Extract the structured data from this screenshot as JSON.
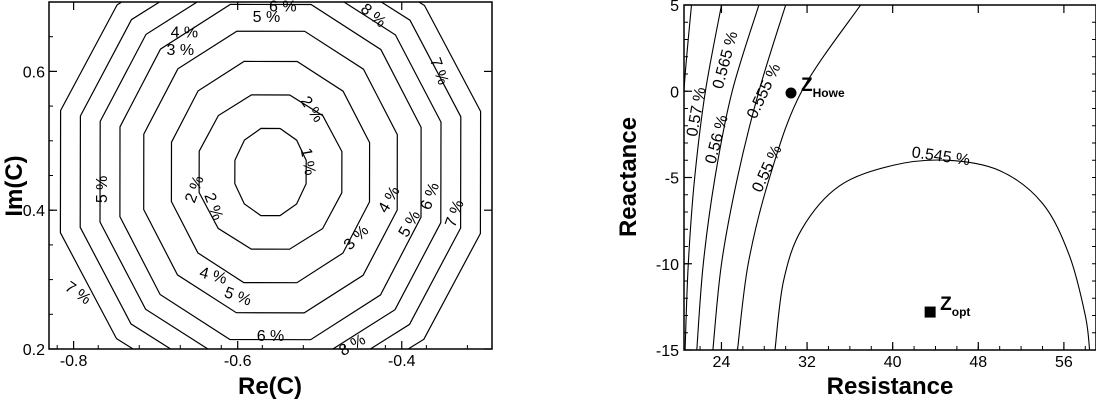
{
  "chart_data": [
    {
      "type": "contour",
      "xlabel": "Re(C)",
      "ylabel": "Im(C)",
      "xlim": [
        -0.83,
        -0.29
      ],
      "ylim": [
        0.2,
        0.7
      ],
      "x_ticks": [
        "-0.8",
        "-0.6",
        "-0.4"
      ],
      "y_ticks": [
        "0.2",
        "0.4",
        "0.6"
      ],
      "center": [
        -0.56,
        0.455
      ],
      "levels": [
        {
          "label": "1 %",
          "rx": 0.045,
          "ry": 0.065
        },
        {
          "label": "2 %",
          "rx": 0.09,
          "ry": 0.115
        },
        {
          "label": "3 %",
          "rx": 0.125,
          "ry": 0.165
        },
        {
          "label": "4 %",
          "rx": 0.16,
          "ry": 0.21
        },
        {
          "label": "5 %",
          "rx": 0.19,
          "ry": 0.25
        },
        {
          "label": "6 %",
          "rx": 0.215,
          "ry": 0.28
        },
        {
          "label": "7 %",
          "rx": 0.24,
          "ry": 0.31
        },
        {
          "label": "8 %",
          "rx": 0.265,
          "ry": 0.34
        }
      ],
      "contour_labels": [
        {
          "text": "1 %",
          "x": -0.515,
          "y": 0.47,
          "rot": 80
        },
        {
          "text": "2 %",
          "x": -0.51,
          "y": 0.545,
          "rot": 55
        },
        {
          "text": "2 %",
          "x": -0.652,
          "y": 0.43,
          "rot": -70
        },
        {
          "text": "2 %",
          "x": -0.63,
          "y": 0.405,
          "rot": 70
        },
        {
          "text": "3 %",
          "x": -0.67,
          "y": 0.63,
          "rot": 0
        },
        {
          "text": "3 %",
          "x": -0.455,
          "y": 0.36,
          "rot": -45
        },
        {
          "text": "4 %",
          "x": -0.665,
          "y": 0.655,
          "rot": 0
        },
        {
          "text": "4 %",
          "x": -0.415,
          "y": 0.415,
          "rot": -60
        },
        {
          "text": "4 %",
          "x": -0.63,
          "y": 0.305,
          "rot": 15
        },
        {
          "text": "5 %",
          "x": -0.565,
          "y": 0.678,
          "rot": 0
        },
        {
          "text": "5 %",
          "x": -0.765,
          "y": 0.43,
          "rot": -90
        },
        {
          "text": "5 %",
          "x": -0.39,
          "y": 0.38,
          "rot": -60
        },
        {
          "text": "5 %",
          "x": -0.6,
          "y": 0.275,
          "rot": 20
        },
        {
          "text": "6 %",
          "x": -0.545,
          "y": 0.693,
          "rot": 0
        },
        {
          "text": "6 %",
          "x": -0.365,
          "y": 0.42,
          "rot": -70
        },
        {
          "text": "6 %",
          "x": -0.56,
          "y": 0.218,
          "rot": 0
        },
        {
          "text": "7 %",
          "x": -0.355,
          "y": 0.6,
          "rot": 70
        },
        {
          "text": "7 %",
          "x": -0.335,
          "y": 0.395,
          "rot": -70
        },
        {
          "text": "7 %",
          "x": -0.795,
          "y": 0.28,
          "rot": 35
        },
        {
          "text": "8 %",
          "x": -0.435,
          "y": 0.68,
          "rot": 40
        },
        {
          "text": "8 %",
          "x": -0.46,
          "y": 0.205,
          "rot": -30
        }
      ]
    },
    {
      "type": "contour",
      "xlabel": "Resistance",
      "ylabel": "Reactance",
      "xlim": [
        20.5,
        59
      ],
      "ylim": [
        -15,
        5
      ],
      "x_ticks": [
        "24",
        "32",
        "40",
        "48",
        "56"
      ],
      "y_ticks": [
        "-15",
        "-10",
        "-5",
        "0",
        "5"
      ],
      "lines": [
        {
          "label": "0.57 %",
          "points": [
            [
              21.2,
              5
            ],
            [
              20.5,
              0
            ],
            [
              20.5,
              -3
            ]
          ]
        },
        {
          "label": "0.565 %",
          "points": [
            [
              24,
              5
            ],
            [
              22.5,
              0
            ],
            [
              21.5,
              -5
            ],
            [
              20.9,
              -10
            ],
            [
              20.6,
              -15
            ]
          ]
        },
        {
          "label": "0.56 %",
          "points": [
            [
              27.5,
              5
            ],
            [
              25,
              0
            ],
            [
              23.4,
              -5
            ],
            [
              22.3,
              -10
            ],
            [
              21.7,
              -15
            ]
          ]
        },
        {
          "label": "0.555 %",
          "points": [
            [
              30,
              5
            ],
            [
              27.5,
              0
            ],
            [
              25.5,
              -5
            ],
            [
              24,
              -10
            ],
            [
              23.2,
              -15
            ]
          ]
        },
        {
          "label": "0.55 %",
          "points": [
            [
              37,
              5
            ],
            [
              31.5,
              0
            ],
            [
              28.5,
              -5
            ],
            [
              26.5,
              -10
            ],
            [
              25.5,
              -15
            ]
          ]
        },
        {
          "label": "0.545 %",
          "points": [
            [
              29,
              -15
            ],
            [
              29.8,
              -11
            ],
            [
              31.5,
              -8
            ],
            [
              35,
              -5.5
            ],
            [
              40,
              -4.3
            ],
            [
              45,
              -4
            ],
            [
              50,
              -4.6
            ],
            [
              54,
              -6.5
            ],
            [
              56.5,
              -9.5
            ],
            [
              58,
              -13
            ],
            [
              58.4,
              -15
            ]
          ]
        }
      ],
      "contour_labels": [
        {
          "text": "0.57 %",
          "x": 21.7,
          "y": -1.2,
          "rot": -80
        },
        {
          "text": "0.565 %",
          "x": 24.4,
          "y": 1.8,
          "rot": -75
        },
        {
          "text": "0.56 %",
          "x": 23.6,
          "y": -2.8,
          "rot": -75
        },
        {
          "text": "0.555 %",
          "x": 28.0,
          "y": 0.0,
          "rot": -65
        },
        {
          "text": "0.55 %",
          "x": 28.3,
          "y": -4.5,
          "rot": -65
        },
        {
          "text": "0.545 %",
          "x": 44.5,
          "y": -3.8,
          "rot": 8
        }
      ],
      "markers": [
        {
          "name": "Z",
          "sub": "Howe",
          "x": 30.5,
          "y": -0.1,
          "shape": "circle"
        },
        {
          "name": "Z",
          "sub": "opt",
          "x": 43.5,
          "y": -12.8,
          "shape": "square"
        }
      ]
    }
  ]
}
